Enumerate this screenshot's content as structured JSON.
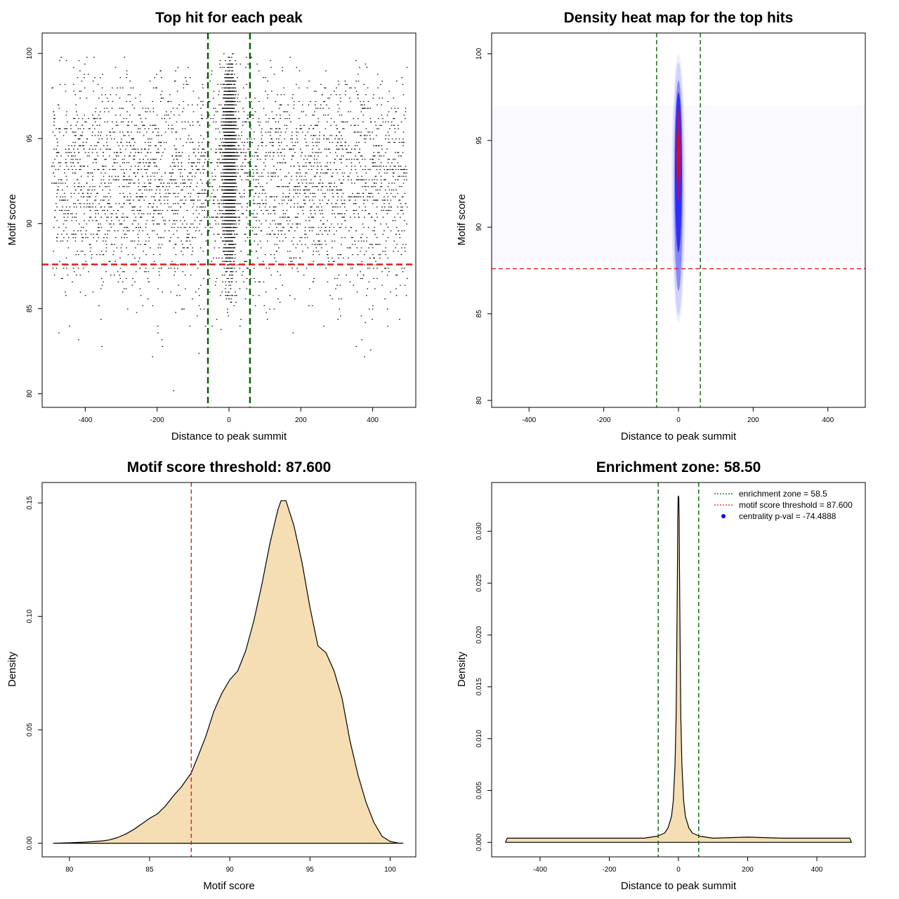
{
  "chart_data": [
    {
      "type": "scatter",
      "title": "Top hit for each peak",
      "xlabel": "Distance to peak summit",
      "ylabel": "Motif score",
      "xlim": [
        -520,
        520
      ],
      "ylim": [
        79.2,
        101.2
      ],
      "xticks": [
        -400,
        -200,
        0,
        200,
        400
      ],
      "yticks": [
        80,
        85,
        90,
        95,
        100
      ],
      "point_color": "#000000",
      "distribution": {
        "background": {
          "x_range": [
            -495,
            495
          ],
          "score_range": [
            79.7,
            99.9
          ],
          "mode": 92.5
        },
        "central": {
          "x_center": 0,
          "x_spread_sd": 8,
          "score_range": [
            84.5,
            100
          ],
          "mode": 93.5
        }
      },
      "vlines": [
        {
          "x": -58.5,
          "color": "#006400",
          "style": "dashed"
        },
        {
          "x": 58.5,
          "color": "#006400",
          "style": "dashed"
        }
      ],
      "hlines": [
        {
          "y": 87.6,
          "color": "#e31a1c",
          "style": "dashed"
        }
      ]
    },
    {
      "type": "heatmap",
      "title": "Density heat map for the top hits",
      "xlabel": "Distance to peak summit",
      "ylabel": "Motif score",
      "xlim": [
        -500,
        500
      ],
      "ylim": [
        79.6,
        101.2
      ],
      "xticks": [
        -400,
        -200,
        0,
        200,
        400
      ],
      "yticks": [
        80,
        85,
        90,
        95,
        100
      ],
      "colors": [
        "#ffffff",
        "#0000ff",
        "#ff0000"
      ],
      "hotspot": {
        "x": 0,
        "y_center": 94,
        "y_range": [
          84.5,
          100
        ]
      },
      "vlines": [
        {
          "x": -58.5,
          "color": "#006400",
          "style": "dashed"
        },
        {
          "x": 58.5,
          "color": "#006400",
          "style": "dashed"
        }
      ],
      "hlines": [
        {
          "y": 87.6,
          "color": "#e31a1c",
          "style": "dashed"
        }
      ]
    },
    {
      "type": "area",
      "title": "Motif score threshold: 87.600",
      "xlabel": "Motif score",
      "ylabel": "Density",
      "xlim": [
        78.3,
        101.6
      ],
      "ylim": [
        -0.006,
        0.159
      ],
      "xticks": [
        80,
        85,
        90,
        95,
        100
      ],
      "yticks": [
        0.0,
        0.05,
        0.1,
        0.15
      ],
      "ytick_labels": [
        "0.00",
        "0.05",
        "0.10",
        "0.15"
      ],
      "fill_color": "#f5deb3",
      "line_color": "#000000",
      "x": [
        79,
        80,
        81,
        82,
        82.5,
        83,
        83.5,
        84,
        84.5,
        85,
        85.5,
        86,
        86.5,
        87,
        87.6,
        88,
        88.5,
        89,
        89.5,
        90,
        90.5,
        91,
        91.5,
        92,
        92.5,
        93,
        93.2,
        93.5,
        94,
        94.5,
        95,
        95.5,
        96,
        96.5,
        97,
        97.5,
        98,
        98.5,
        99,
        99.5,
        100,
        100.5,
        100.8
      ],
      "y": [
        0.0,
        0.0002,
        0.0005,
        0.001,
        0.0015,
        0.0025,
        0.004,
        0.006,
        0.0085,
        0.011,
        0.013,
        0.0165,
        0.021,
        0.025,
        0.031,
        0.038,
        0.047,
        0.058,
        0.066,
        0.072,
        0.076,
        0.085,
        0.098,
        0.114,
        0.132,
        0.147,
        0.151,
        0.151,
        0.14,
        0.124,
        0.104,
        0.087,
        0.084,
        0.076,
        0.064,
        0.045,
        0.03,
        0.018,
        0.009,
        0.003,
        0.0008,
        0.0001,
        0.0
      ]
    },
    {
      "type": "area",
      "title": "Enrichment zone: 58.50",
      "xlabel": "Distance to peak summit",
      "ylabel": "Density",
      "xlim": [
        -540,
        540
      ],
      "ylim": [
        -0.0014,
        0.0347
      ],
      "xticks": [
        -400,
        -200,
        0,
        200,
        400
      ],
      "yticks": [
        0.0,
        0.005,
        0.01,
        0.015,
        0.02,
        0.025,
        0.03
      ],
      "ytick_labels": [
        "0.000",
        "0.005",
        "0.010",
        "0.015",
        "0.020",
        "0.025",
        "0.030"
      ],
      "fill_color": "#f5deb3",
      "line_color": "#000000",
      "x": [
        -500,
        -495,
        -400,
        -300,
        -200,
        -100,
        -60,
        -40,
        -30,
        -20,
        -15,
        -10,
        -7,
        -5,
        -3,
        -2,
        -1,
        0,
        1,
        2,
        3,
        5,
        7,
        10,
        15,
        20,
        30,
        40,
        60,
        100,
        200,
        300,
        400,
        495,
        500
      ],
      "y": [
        0.0,
        0.0004,
        0.0004,
        0.0004,
        0.0004,
        0.0004,
        0.0006,
        0.0009,
        0.0014,
        0.0025,
        0.004,
        0.0075,
        0.012,
        0.018,
        0.026,
        0.031,
        0.0333,
        0.0334,
        0.0332,
        0.031,
        0.026,
        0.018,
        0.012,
        0.0075,
        0.004,
        0.0025,
        0.0014,
        0.0009,
        0.0006,
        0.0004,
        0.0005,
        0.0004,
        0.0004,
        0.0004,
        0.0
      ],
      "vlines": [
        {
          "x": -58.5,
          "color": "#006400",
          "style": "dashed"
        },
        {
          "x": 58.5,
          "color": "#006400",
          "style": "dashed"
        }
      ],
      "legend_position": "top-right",
      "legend": [
        {
          "label": "enrichment zone = 58.5",
          "color": "#006400",
          "style": "dotted"
        },
        {
          "label": "motif score threshold = 87.600",
          "color": "#e31a1c",
          "style": "dotted"
        },
        {
          "label": "centrality p-val = -74.4888",
          "color": "#0000ff",
          "style": "point"
        }
      ]
    }
  ]
}
